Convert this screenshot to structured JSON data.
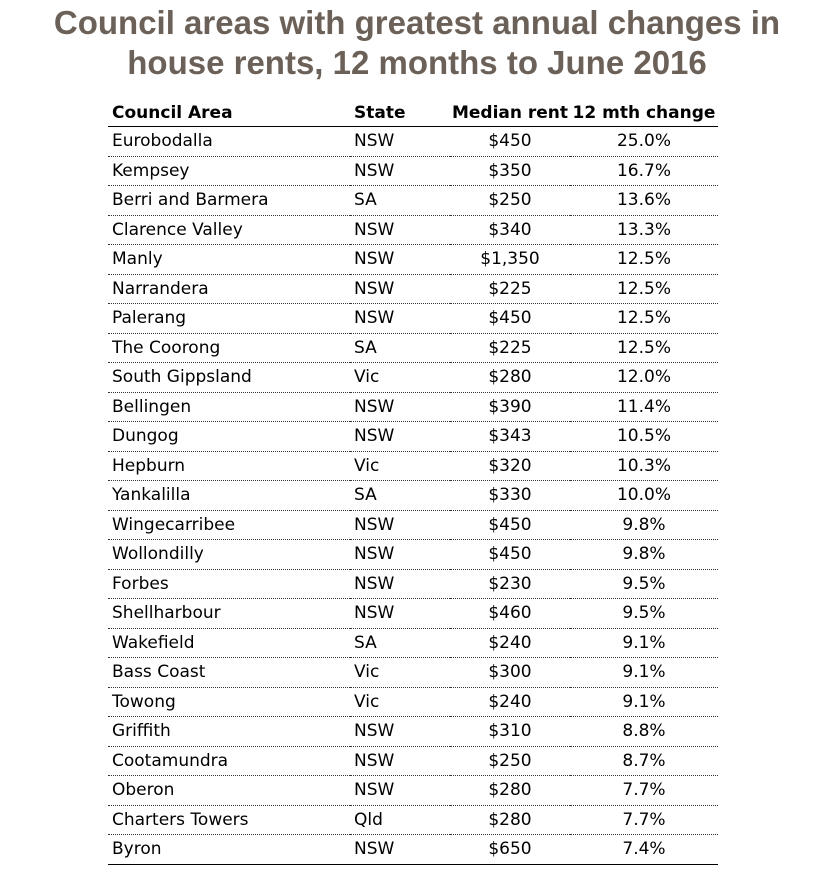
{
  "title_lines": [
    "Council areas with greatest annual changes in",
    "house rents, 12 months to June 2016"
  ],
  "colors": {
    "title": "#6b6158"
  },
  "chart_data": {
    "type": "table",
    "columns": [
      "Council Area",
      "State",
      "Median rent",
      "12 mth change"
    ],
    "rows": [
      [
        "Eurobodalla",
        "NSW",
        "$450",
        "25.0%"
      ],
      [
        "Kempsey",
        "NSW",
        "$350",
        "16.7%"
      ],
      [
        "Berri and Barmera",
        "SA",
        "$250",
        "13.6%"
      ],
      [
        "Clarence Valley",
        "NSW",
        "$340",
        "13.3%"
      ],
      [
        "Manly",
        "NSW",
        "$1,350",
        "12.5%"
      ],
      [
        "Narrandera",
        "NSW",
        "$225",
        "12.5%"
      ],
      [
        "Palerang",
        "NSW",
        "$450",
        "12.5%"
      ],
      [
        "The Coorong",
        "SA",
        "$225",
        "12.5%"
      ],
      [
        "South Gippsland",
        "Vic",
        "$280",
        "12.0%"
      ],
      [
        "Bellingen",
        "NSW",
        "$390",
        "11.4%"
      ],
      [
        "Dungog",
        "NSW",
        "$343",
        "10.5%"
      ],
      [
        "Hepburn",
        "Vic",
        "$320",
        "10.3%"
      ],
      [
        "Yankalilla",
        "SA",
        "$330",
        "10.0%"
      ],
      [
        "Wingecarribee",
        "NSW",
        "$450",
        "9.8%"
      ],
      [
        "Wollondilly",
        "NSW",
        "$450",
        "9.8%"
      ],
      [
        "Forbes",
        "NSW",
        "$230",
        "9.5%"
      ],
      [
        "Shellharbour",
        "NSW",
        "$460",
        "9.5%"
      ],
      [
        "Wakefield",
        "SA",
        "$240",
        "9.1%"
      ],
      [
        "Bass Coast",
        "Vic",
        "$300",
        "9.1%"
      ],
      [
        "Towong",
        "Vic",
        "$240",
        "9.1%"
      ],
      [
        "Griffith",
        "NSW",
        "$310",
        "8.8%"
      ],
      [
        "Cootamundra",
        "NSW",
        "$250",
        "8.7%"
      ],
      [
        "Oberon",
        "NSW",
        "$280",
        "7.7%"
      ],
      [
        "Charters Towers",
        "Qld",
        "$280",
        "7.7%"
      ],
      [
        "Byron",
        "NSW",
        "$650",
        "7.4%"
      ]
    ]
  }
}
